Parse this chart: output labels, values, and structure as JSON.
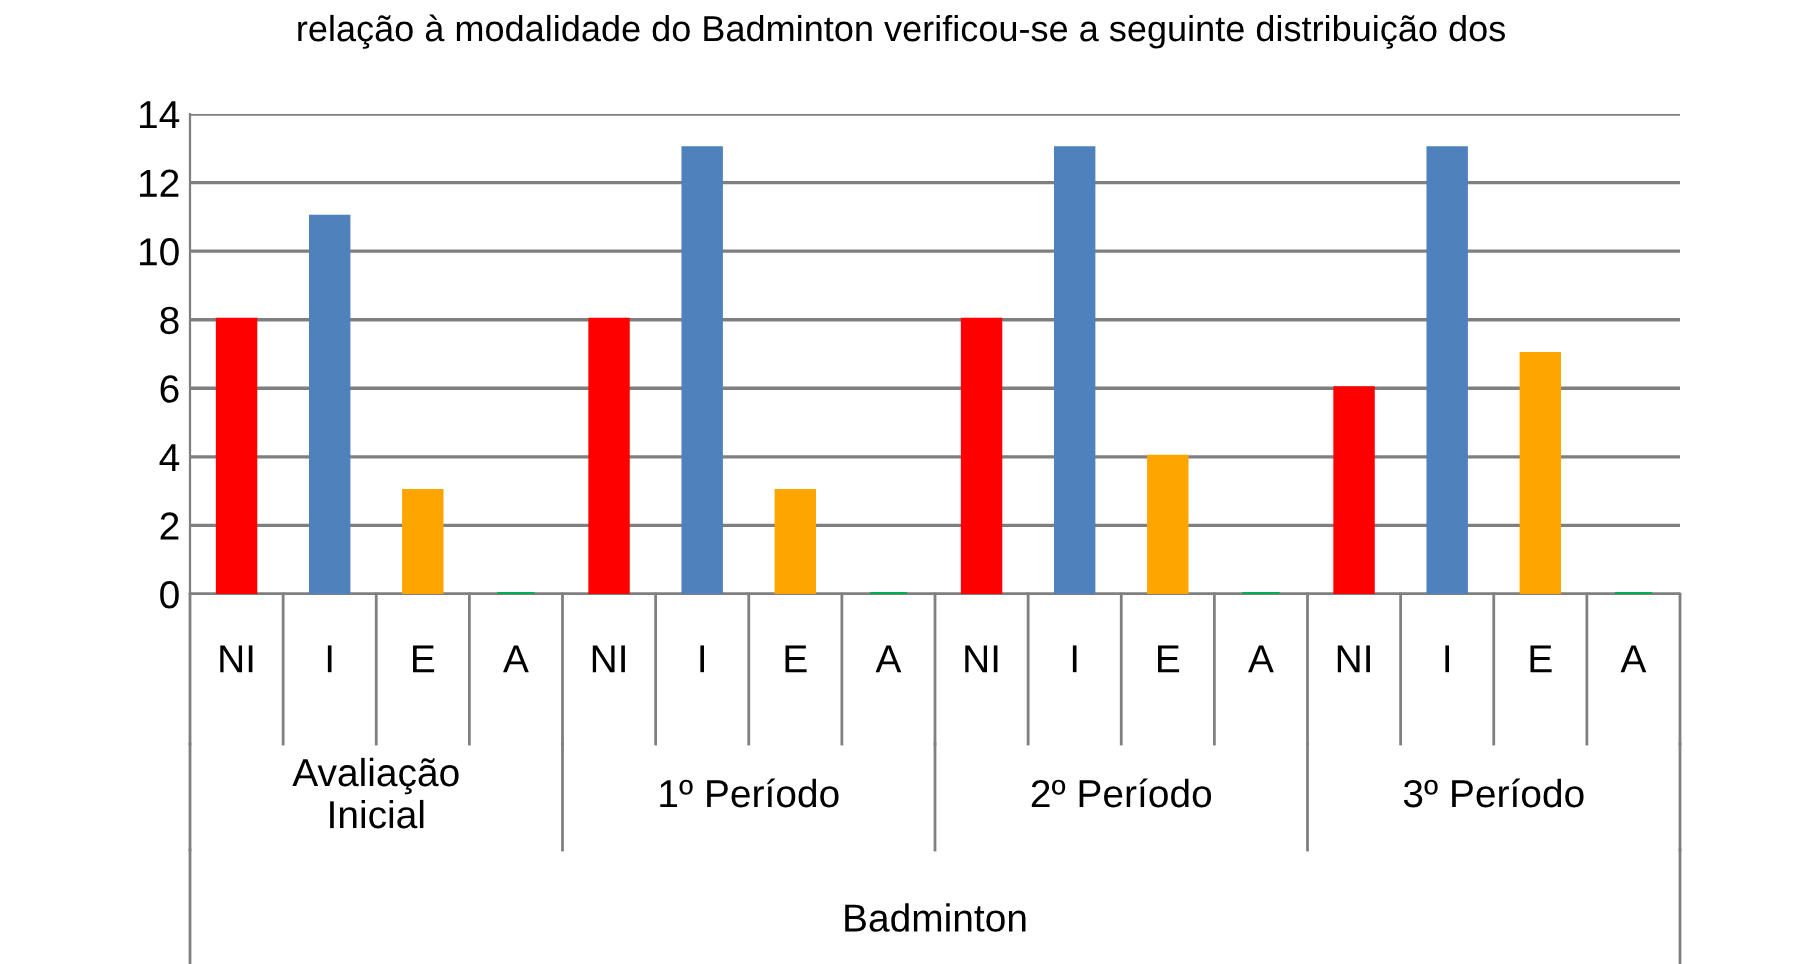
{
  "chart_data": {
    "type": "bar",
    "title": "relação à modalidade do Badminton verificou-se a seguinte distribuição dos",
    "categories": [
      "NI",
      "I",
      "E",
      "A",
      "NI",
      "I",
      "E",
      "A",
      "NI",
      "I",
      "E",
      "A",
      "NI",
      "I",
      "E",
      "A"
    ],
    "values": [
      8,
      11,
      3,
      0,
      8,
      13,
      3,
      0,
      8,
      13,
      4,
      0,
      6,
      13,
      7,
      0
    ],
    "colors": [
      "#ff0000",
      "#4f81bd",
      "#ffa500",
      "#00b050",
      "#ff0000",
      "#4f81bd",
      "#ffa500",
      "#00b050",
      "#ff0000",
      "#4f81bd",
      "#ffa500",
      "#00b050",
      "#ff0000",
      "#4f81bd",
      "#ffa500",
      "#00b050"
    ],
    "annotations": [
      "Avaliação\nInicial",
      "1º Período",
      "2º Período",
      "3º Período",
      "Badminton"
    ],
    "ylim": [
      0,
      14
    ],
    "yticks": [
      0,
      2,
      4,
      6,
      8,
      10,
      12,
      14
    ],
    "grid": "y",
    "legend": false
  }
}
